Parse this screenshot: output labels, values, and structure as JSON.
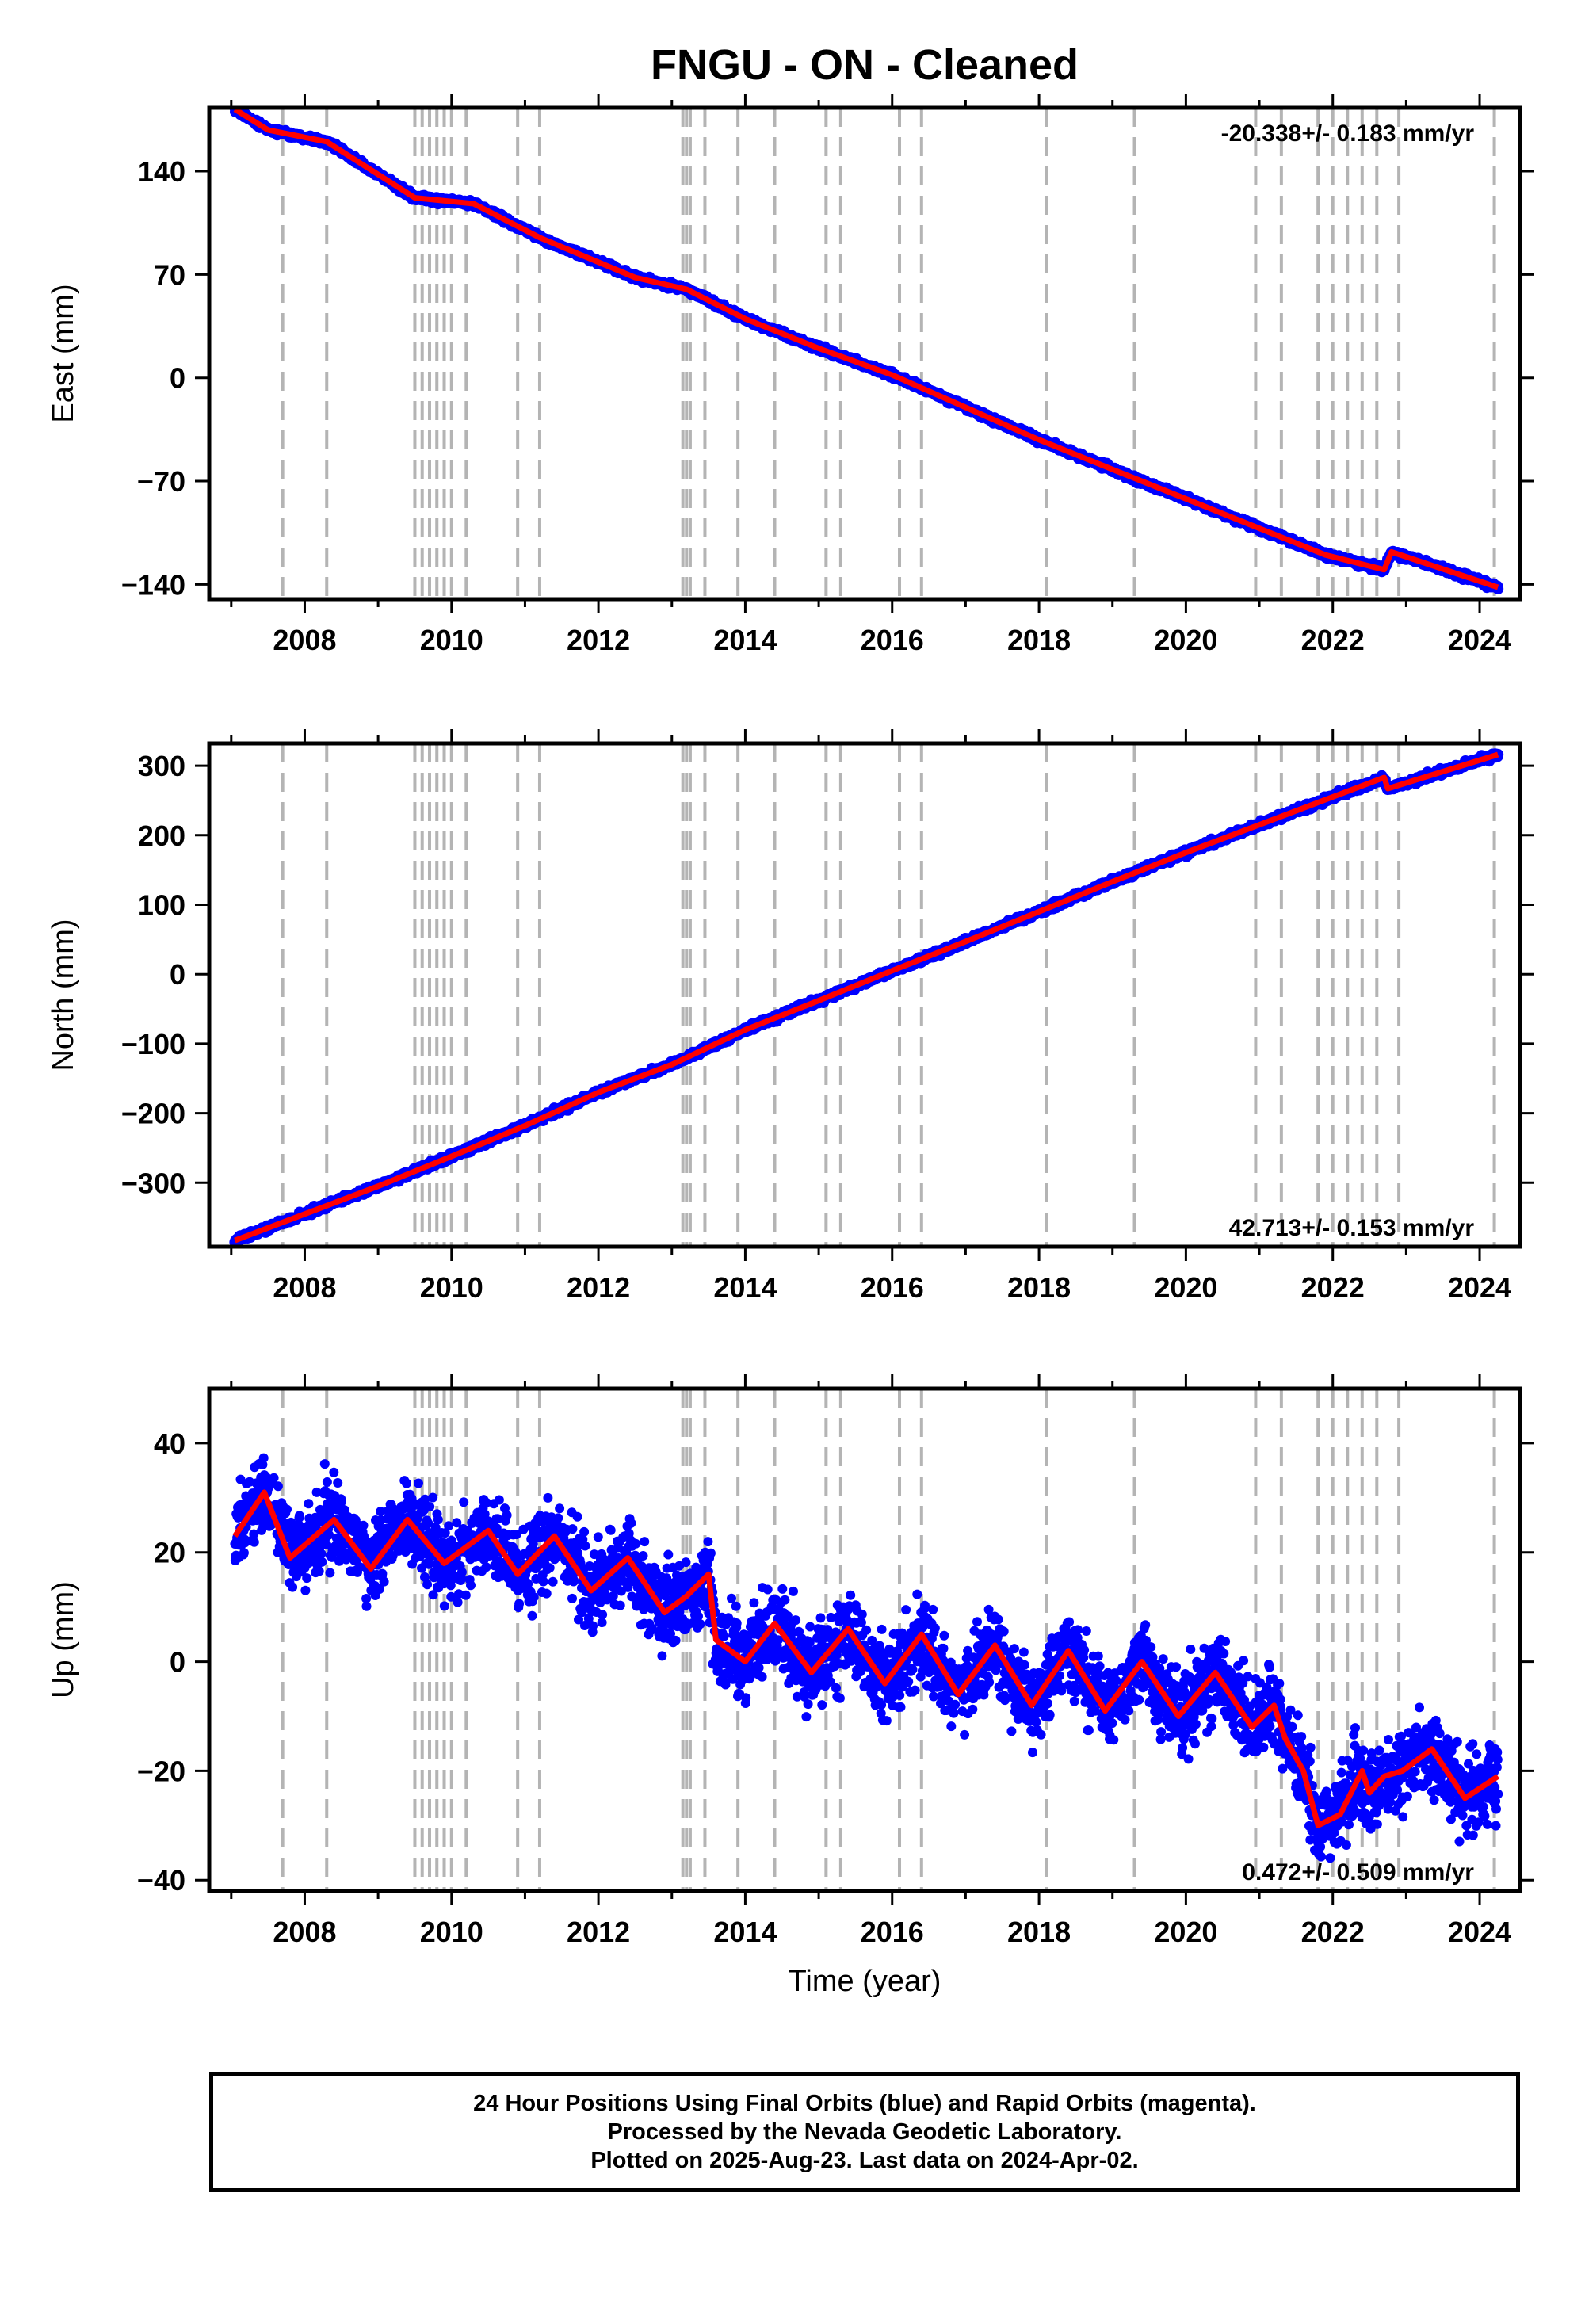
{
  "title": "FNGU  - ON - Cleaned",
  "footer": {
    "line1": "24 Hour Positions Using Final Orbits (blue) and Rapid Orbits (magenta).",
    "line2": "Processed by the Nevada Geodetic Laboratory.",
    "line3": "Plotted on 2025-Aug-23. Last data on 2024-Apr-02."
  },
  "colors": {
    "points": "#0000ff",
    "model": "#ff0000",
    "events": "#b4b4b4",
    "frame": "#000000"
  },
  "chart_data": [
    {
      "type": "scatter",
      "ylabel": "East (mm)",
      "xlim": [
        2006.7,
        2024.55
      ],
      "ylim": [
        -150,
        183
      ],
      "xticks": [
        "2008",
        "2010",
        "2012",
        "2014",
        "2016",
        "2018",
        "2020",
        "2022",
        "2024"
      ],
      "yticks": [
        "140",
        "70",
        "0",
        "−70",
        "−140"
      ],
      "grid": false,
      "rate_label": "-20.338+/- 0.183 mm/yr",
      "rate_position": "top-right",
      "start": 2007.05,
      "end": 2024.25,
      "series": [
        {
          "type": "line",
          "values": [
            [
              2007.05,
              182
            ],
            [
              2007.5,
              168
            ],
            [
              2008.3,
              160
            ],
            [
              2009.5,
              122
            ],
            [
              2010.3,
              118
            ],
            [
              2011.2,
              95
            ],
            [
              2012.5,
              68
            ],
            [
              2013.2,
              60
            ],
            [
              2014.0,
              40
            ],
            [
              2015.0,
              20
            ],
            [
              2016.0,
              2
            ],
            [
              2017.0,
              -20
            ],
            [
              2018.0,
              -42
            ],
            [
              2019.0,
              -62
            ],
            [
              2020.0,
              -82
            ],
            [
              2021.0,
              -102
            ],
            [
              2021.9,
              -120
            ],
            [
              2022.7,
              -130
            ],
            [
              2022.8,
              -118
            ],
            [
              2024.25,
              -142
            ]
          ]
        }
      ],
      "events": [
        2007.7,
        2008.3,
        2009.5,
        2009.6,
        2009.7,
        2009.8,
        2009.9,
        2010.0,
        2010.2,
        2010.9,
        2011.2,
        2013.15,
        2013.2,
        2013.25,
        2013.45,
        2013.9,
        2014.4,
        2015.1,
        2015.3,
        2016.1,
        2016.4,
        2018.1,
        2019.3,
        2020.95,
        2021.3,
        2021.8,
        2022.0,
        2022.2,
        2022.4,
        2022.6,
        2022.9,
        2024.2
      ]
    },
    {
      "type": "scatter",
      "ylabel": "North (mm)",
      "xlim": [
        2006.7,
        2024.55
      ],
      "ylim": [
        -392,
        332
      ],
      "xticks": [
        "2008",
        "2010",
        "2012",
        "2014",
        "2016",
        "2018",
        "2020",
        "2022",
        "2024"
      ],
      "yticks": [
        "300",
        "200",
        "100",
        "0",
        "−100",
        "−200",
        "−300"
      ],
      "grid": false,
      "rate_label": "42.713+/- 0.153 mm/yr",
      "rate_position": "bottom-right",
      "start": 2007.05,
      "end": 2024.25,
      "series": [
        {
          "type": "line",
          "values": [
            [
              2007.05,
              -383
            ],
            [
              2008.0,
              -345
            ],
            [
              2009.0,
              -305
            ],
            [
              2010.0,
              -262
            ],
            [
              2011.0,
              -218
            ],
            [
              2012.0,
              -170
            ],
            [
              2013.0,
              -130
            ],
            [
              2014.0,
              -80
            ],
            [
              2015.0,
              -38
            ],
            [
              2016.0,
              5
            ],
            [
              2017.0,
              47
            ],
            [
              2018.0,
              90
            ],
            [
              2019.0,
              133
            ],
            [
              2020.0,
              175
            ],
            [
              2021.0,
              215
            ],
            [
              2022.0,
              255
            ],
            [
              2022.7,
              283
            ],
            [
              2022.75,
              267
            ],
            [
              2024.25,
              316
            ]
          ]
        }
      ],
      "events": [
        2007.7,
        2008.3,
        2009.5,
        2009.6,
        2009.7,
        2009.8,
        2009.9,
        2010.0,
        2010.2,
        2010.9,
        2011.2,
        2013.15,
        2013.2,
        2013.25,
        2013.45,
        2013.9,
        2014.4,
        2015.1,
        2015.3,
        2016.1,
        2016.4,
        2018.1,
        2019.3,
        2020.95,
        2021.3,
        2021.8,
        2022.0,
        2022.2,
        2022.4,
        2022.6,
        2022.9,
        2024.2
      ]
    },
    {
      "type": "scatter",
      "ylabel": "Up (mm)",
      "xlabel": "Time (year)",
      "xlim": [
        2006.7,
        2024.55
      ],
      "ylim": [
        -42,
        50
      ],
      "xticks": [
        "2008",
        "2010",
        "2012",
        "2014",
        "2016",
        "2018",
        "2020",
        "2022",
        "2024"
      ],
      "yticks": [
        "40",
        "20",
        "0",
        "−20",
        "−40"
      ],
      "grid": false,
      "rate_label": "0.472+/- 0.509 mm/yr",
      "rate_position": "bottom-right",
      "start": 2007.05,
      "end": 2024.25,
      "series": [
        {
          "type": "line",
          "values": [
            [
              2007.05,
              23
            ],
            [
              2007.45,
              31
            ],
            [
              2007.8,
              19
            ],
            [
              2008.4,
              26
            ],
            [
              2008.9,
              17
            ],
            [
              2009.4,
              26
            ],
            [
              2009.9,
              18
            ],
            [
              2010.5,
              24
            ],
            [
              2010.9,
              16
            ],
            [
              2011.4,
              23
            ],
            [
              2011.9,
              13
            ],
            [
              2012.4,
              19
            ],
            [
              2012.9,
              9
            ],
            [
              2013.2,
              12
            ],
            [
              2013.5,
              16
            ],
            [
              2013.6,
              4
            ],
            [
              2014.0,
              0
            ],
            [
              2014.4,
              7
            ],
            [
              2014.9,
              -2
            ],
            [
              2015.4,
              6
            ],
            [
              2015.9,
              -4
            ],
            [
              2016.4,
              5
            ],
            [
              2016.9,
              -6
            ],
            [
              2017.4,
              3
            ],
            [
              2017.9,
              -8
            ],
            [
              2018.4,
              2
            ],
            [
              2018.9,
              -9
            ],
            [
              2019.4,
              0
            ],
            [
              2019.9,
              -10
            ],
            [
              2020.4,
              -2
            ],
            [
              2020.9,
              -12
            ],
            [
              2021.2,
              -8
            ],
            [
              2021.35,
              -14
            ],
            [
              2021.6,
              -20
            ],
            [
              2021.8,
              -30
            ],
            [
              2022.1,
              -28
            ],
            [
              2022.4,
              -20
            ],
            [
              2022.5,
              -24
            ],
            [
              2022.7,
              -21
            ],
            [
              2022.95,
              -20
            ],
            [
              2023.35,
              -16
            ],
            [
              2023.8,
              -25
            ],
            [
              2024.25,
              -21
            ]
          ]
        }
      ],
      "events": [
        2007.7,
        2008.3,
        2009.5,
        2009.6,
        2009.7,
        2009.8,
        2009.9,
        2010.0,
        2010.2,
        2010.9,
        2011.2,
        2013.15,
        2013.2,
        2013.25,
        2013.45,
        2013.9,
        2014.4,
        2015.1,
        2015.3,
        2016.1,
        2016.4,
        2018.1,
        2019.3,
        2020.95,
        2021.3,
        2021.8,
        2022.0,
        2022.2,
        2022.4,
        2022.6,
        2022.9,
        2024.2
      ]
    }
  ]
}
